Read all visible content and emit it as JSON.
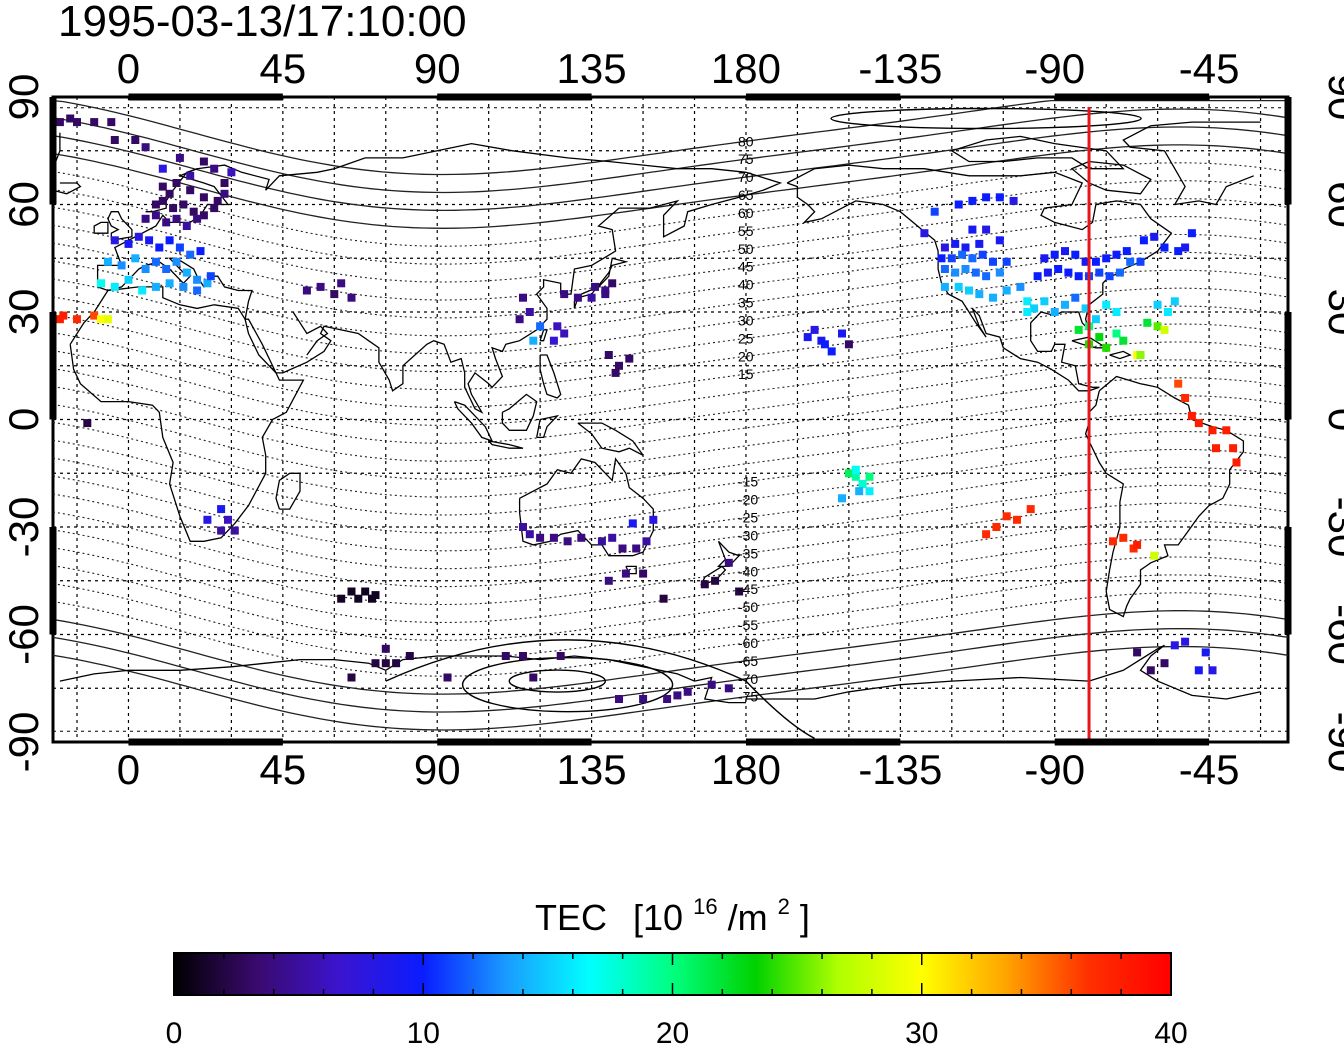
{
  "title": "1995-03-13/17:10:00",
  "map": {
    "lon_ticks": [
      0,
      45,
      90,
      135,
      180,
      -135,
      -90,
      -45
    ],
    "lat_ticks": [
      90,
      60,
      30,
      0,
      -30,
      -60,
      -90
    ],
    "lon_range": [
      -22,
      338
    ],
    "lat_range": [
      -90,
      90
    ],
    "grid_lon_step": 15,
    "grid_lat_step": 15,
    "grid": "on",
    "terminator_lon": -80,
    "terminator_color": "#e8141c",
    "magnetic_lat_labels": [
      "80",
      "75",
      "70",
      "65",
      "60",
      "55",
      "50",
      "45",
      "40",
      "35",
      "30",
      "25",
      "20",
      "15",
      "-15",
      "-20",
      "-25",
      "-30",
      "-35",
      "-40",
      "-45",
      "-50",
      "-55",
      "-60",
      "-65",
      "-70",
      "-75"
    ]
  },
  "colorbar": {
    "title": "TEC",
    "unit_base": "[10",
    "unit_exp": "16",
    "unit_mid": "/m",
    "unit_exp2": "2",
    "unit_end": "]",
    "min": 0,
    "max": 40,
    "tick_labels": [
      "0",
      "10",
      "20",
      "30",
      "40"
    ],
    "gradient_colors": [
      "#000000",
      "#3a0a6e",
      "#3b14d0",
      "#0a1dff",
      "#1a9bff",
      "#00ffff",
      "#00ff80",
      "#00d200",
      "#b0ff00",
      "#ffff00",
      "#ffa500",
      "#ff3000",
      "#ff0000"
    ]
  },
  "chart_data": {
    "type": "scatter",
    "x_label": "",
    "y_label": "",
    "description_units": "lon (deg), lat (deg), TEC (1e16/m^2)",
    "points": [
      [
        -20,
        83,
        3
      ],
      [
        -15,
        83,
        3
      ],
      [
        -10,
        83,
        3
      ],
      [
        -5,
        83,
        3
      ],
      [
        -17,
        84,
        3
      ],
      [
        -4,
        78,
        3
      ],
      [
        2,
        78,
        3
      ],
      [
        5,
        76,
        4
      ],
      [
        10,
        70,
        8
      ],
      [
        15,
        73,
        4
      ],
      [
        22,
        72,
        3
      ],
      [
        25,
        70,
        4
      ],
      [
        18,
        68,
        5
      ],
      [
        10,
        65,
        3
      ],
      [
        12,
        63,
        3
      ],
      [
        14,
        66,
        3
      ],
      [
        18,
        64,
        3
      ],
      [
        22,
        62,
        3
      ],
      [
        26,
        61,
        3
      ],
      [
        28,
        63,
        4
      ],
      [
        30,
        69,
        6
      ],
      [
        28,
        66,
        3
      ],
      [
        8,
        60,
        3
      ],
      [
        10,
        61,
        3
      ],
      [
        13,
        59,
        3
      ],
      [
        16,
        60,
        3
      ],
      [
        19,
        58,
        3
      ],
      [
        22,
        57,
        3
      ],
      [
        25,
        59,
        3
      ],
      [
        5,
        56,
        4
      ],
      [
        8,
        57,
        4
      ],
      [
        11,
        55,
        4
      ],
      [
        14,
        56,
        4
      ],
      [
        17,
        54,
        5
      ],
      [
        20,
        56,
        4
      ],
      [
        -4,
        50,
        8
      ],
      [
        0,
        49,
        9
      ],
      [
        3,
        51,
        8
      ],
      [
        6,
        50,
        9
      ],
      [
        9,
        48,
        10
      ],
      [
        12,
        50,
        10
      ],
      [
        15,
        48,
        11
      ],
      [
        18,
        46,
        12
      ],
      [
        21,
        47,
        10
      ],
      [
        -6,
        44,
        14
      ],
      [
        -2,
        43,
        13
      ],
      [
        2,
        45,
        14
      ],
      [
        5,
        42,
        13
      ],
      [
        8,
        44,
        12
      ],
      [
        11,
        42,
        12
      ],
      [
        14,
        44,
        13
      ],
      [
        17,
        41,
        14
      ],
      [
        20,
        39,
        13
      ],
      [
        23,
        38,
        14
      ],
      [
        -8,
        38,
        17
      ],
      [
        -4,
        37,
        16
      ],
      [
        0,
        39,
        15
      ],
      [
        4,
        36,
        16
      ],
      [
        8,
        37,
        14
      ],
      [
        12,
        38,
        14
      ],
      [
        16,
        37,
        13
      ],
      [
        20,
        36,
        12
      ],
      [
        24,
        40,
        11
      ],
      [
        -19,
        29,
        38
      ],
      [
        -15,
        28,
        37
      ],
      [
        -10,
        29,
        36
      ],
      [
        -8,
        28,
        30
      ],
      [
        -6,
        28,
        29
      ],
      [
        -20,
        28,
        38
      ],
      [
        -12,
        -1,
        2
      ],
      [
        27,
        -25,
        9
      ],
      [
        23,
        -28,
        8
      ],
      [
        29,
        -28,
        6
      ],
      [
        31,
        -31,
        5
      ],
      [
        27,
        -31,
        5
      ],
      [
        52,
        36,
        4
      ],
      [
        56,
        37,
        4
      ],
      [
        62,
        38,
        4
      ],
      [
        65,
        34,
        4
      ],
      [
        60,
        35,
        3
      ],
      [
        115,
        34,
        4
      ],
      [
        117,
        30,
        5
      ],
      [
        114,
        28,
        4
      ],
      [
        120,
        26,
        12
      ],
      [
        118,
        22,
        14
      ],
      [
        125,
        26,
        6
      ],
      [
        127,
        35,
        4
      ],
      [
        131,
        34,
        4
      ],
      [
        135,
        34,
        5
      ],
      [
        139,
        36,
        4
      ],
      [
        136,
        37,
        4
      ],
      [
        141,
        38,
        3
      ],
      [
        139,
        35,
        4
      ],
      [
        127,
        24,
        6
      ],
      [
        124,
        22,
        7
      ],
      [
        140,
        18,
        3
      ],
      [
        143,
        15,
        3
      ],
      [
        146,
        17,
        3
      ],
      [
        142,
        13,
        3
      ],
      [
        115,
        -30,
        5
      ],
      [
        117,
        -32,
        5
      ],
      [
        120,
        -33,
        4
      ],
      [
        124,
        -33,
        4
      ],
      [
        128,
        -34,
        4
      ],
      [
        132,
        -33,
        4
      ],
      [
        138,
        -34,
        5
      ],
      [
        141,
        -33,
        5
      ],
      [
        144,
        -36,
        4
      ],
      [
        148,
        -36,
        4
      ],
      [
        151,
        -34,
        5
      ],
      [
        147,
        -29,
        9
      ],
      [
        153,
        -28,
        8
      ],
      [
        140,
        -45,
        4
      ],
      [
        145,
        -43,
        4
      ],
      [
        150,
        -43,
        3
      ],
      [
        168,
        -46,
        2
      ],
      [
        171,
        -45,
        2
      ],
      [
        175,
        -40,
        4
      ],
      [
        178,
        -48,
        2
      ],
      [
        156,
        -50,
        2
      ],
      [
        62,
        -50,
        1
      ],
      [
        65,
        -48,
        1
      ],
      [
        67,
        -50,
        1
      ],
      [
        69,
        -48,
        1
      ],
      [
        71,
        -50,
        1
      ],
      [
        72,
        -49,
        1
      ],
      [
        75,
        -68,
        2
      ],
      [
        78,
        -68,
        2
      ],
      [
        72,
        -68,
        2
      ],
      [
        82,
        -66,
        2
      ],
      [
        65,
        -72,
        2
      ],
      [
        110,
        -66,
        3
      ],
      [
        115,
        -66,
        3
      ],
      [
        126,
        -66,
        3
      ],
      [
        118,
        -72,
        3
      ],
      [
        93,
        -72,
        3
      ],
      [
        75,
        -64,
        3
      ],
      [
        143,
        -78,
        4
      ],
      [
        150,
        -78,
        4
      ],
      [
        157,
        -78,
        4
      ],
      [
        163,
        -76,
        4
      ],
      [
        170,
        -74,
        4
      ],
      [
        175,
        -75,
        4
      ],
      [
        160,
        -77,
        4
      ],
      [
        -160,
        25,
        8
      ],
      [
        -162,
        23,
        9
      ],
      [
        -158,
        22,
        9
      ],
      [
        -157,
        21,
        10
      ],
      [
        -155,
        19,
        10
      ],
      [
        -152,
        24,
        9
      ],
      [
        -150,
        21,
        3
      ],
      [
        -150,
        -15,
        21
      ],
      [
        -148,
        -16,
        19
      ],
      [
        -146,
        -18,
        18
      ],
      [
        -144,
        -20,
        16
      ],
      [
        -147,
        -20,
        14
      ],
      [
        -152,
        -22,
        14
      ],
      [
        -144,
        -16,
        20
      ],
      [
        -148,
        -14,
        17
      ],
      [
        -125,
        58,
        11
      ],
      [
        -118,
        60,
        10
      ],
      [
        -114,
        61,
        10
      ],
      [
        -110,
        62,
        10
      ],
      [
        -106,
        62,
        10
      ],
      [
        -102,
        61,
        8
      ],
      [
        -128,
        52,
        8
      ],
      [
        -114,
        53,
        9
      ],
      [
        -110,
        53,
        8
      ],
      [
        -122,
        48,
        8
      ],
      [
        -119,
        49,
        9
      ],
      [
        -116,
        48,
        9
      ],
      [
        -112,
        49,
        9
      ],
      [
        -106,
        50,
        9
      ],
      [
        -123,
        45,
        10
      ],
      [
        -120,
        45,
        11
      ],
      [
        -117,
        46,
        12
      ],
      [
        -114,
        45,
        12
      ],
      [
        -111,
        46,
        11
      ],
      [
        -108,
        44,
        11
      ],
      [
        -104,
        44,
        11
      ],
      [
        -122,
        42,
        12
      ],
      [
        -119,
        41,
        13
      ],
      [
        -116,
        42,
        13
      ],
      [
        -113,
        41,
        12
      ],
      [
        -110,
        40,
        12
      ],
      [
        -106,
        41,
        13
      ],
      [
        -122,
        37,
        14
      ],
      [
        -118,
        37,
        15
      ],
      [
        -115,
        36,
        15
      ],
      [
        -112,
        35,
        14
      ],
      [
        -108,
        34,
        14
      ],
      [
        -104,
        36,
        14
      ],
      [
        -100,
        37,
        13
      ],
      [
        -98,
        33,
        16
      ],
      [
        -96,
        31,
        15
      ],
      [
        -95,
        40,
        10
      ],
      [
        -92,
        41,
        9
      ],
      [
        -89,
        42,
        10
      ],
      [
        -86,
        41,
        10
      ],
      [
        -83,
        40,
        10
      ],
      [
        -80,
        40,
        11
      ],
      [
        -77,
        41,
        11
      ],
      [
        -74,
        40,
        11
      ],
      [
        -71,
        41,
        12
      ],
      [
        -68,
        44,
        12
      ],
      [
        -65,
        44,
        11
      ],
      [
        -93,
        45,
        9
      ],
      [
        -90,
        46,
        10
      ],
      [
        -87,
        47,
        9
      ],
      [
        -84,
        46,
        10
      ],
      [
        -81,
        44,
        9
      ],
      [
        -78,
        44,
        10
      ],
      [
        -75,
        45,
        10
      ],
      [
        -72,
        46,
        10
      ],
      [
        -69,
        47,
        10
      ],
      [
        -98,
        30,
        16
      ],
      [
        -93,
        33,
        15
      ],
      [
        -90,
        30,
        14
      ],
      [
        -87,
        32,
        14
      ],
      [
        -84,
        34,
        12
      ],
      [
        -81,
        31,
        15
      ],
      [
        -78,
        28,
        15
      ],
      [
        -75,
        32,
        16
      ],
      [
        -72,
        30,
        16
      ],
      [
        -80,
        26,
        20
      ],
      [
        -83,
        25,
        22
      ],
      [
        -77,
        23,
        23
      ],
      [
        -75,
        20,
        24
      ],
      [
        -80,
        21,
        24
      ],
      [
        -72,
        24,
        20
      ],
      [
        -70,
        22,
        22
      ],
      [
        -66,
        18,
        30
      ],
      [
        -65,
        18,
        26
      ],
      [
        -60,
        32,
        15
      ],
      [
        -57,
        30,
        16
      ],
      [
        -55,
        33,
        15
      ],
      [
        -63,
        27,
        22
      ],
      [
        -60,
        26,
        25
      ],
      [
        -58,
        25,
        28
      ],
      [
        -54,
        47,
        10
      ],
      [
        -52,
        48,
        9
      ],
      [
        -58,
        48,
        10
      ],
      [
        -61,
        51,
        9
      ],
      [
        -50,
        52,
        10
      ],
      [
        -64,
        50,
        10
      ],
      [
        -54,
        10,
        36
      ],
      [
        -52,
        6,
        37
      ],
      [
        -50,
        1,
        38
      ],
      [
        -48,
        -1,
        38
      ],
      [
        -44,
        -3,
        38
      ],
      [
        -40,
        -3,
        38
      ],
      [
        -38,
        -8,
        38
      ],
      [
        -37,
        -12,
        38
      ],
      [
        -43,
        -8,
        38
      ],
      [
        -107,
        -30,
        37
      ],
      [
        -104,
        -27,
        37
      ],
      [
        -101,
        -28,
        37
      ],
      [
        -97,
        -25,
        37
      ],
      [
        -110,
        -32,
        37
      ],
      [
        -73,
        -34,
        37
      ],
      [
        -70,
        -33,
        37
      ],
      [
        -67,
        -36,
        37
      ],
      [
        -61,
        -38,
        28
      ],
      [
        -66,
        -35,
        38
      ],
      [
        -55,
        -63,
        8
      ],
      [
        -52,
        -62,
        8
      ],
      [
        -46,
        -65,
        9
      ],
      [
        -44,
        -70,
        8
      ],
      [
        -48,
        -70,
        9
      ],
      [
        -62,
        -70,
        3
      ],
      [
        -58,
        -68,
        3
      ],
      [
        -66,
        -65,
        3
      ]
    ]
  }
}
